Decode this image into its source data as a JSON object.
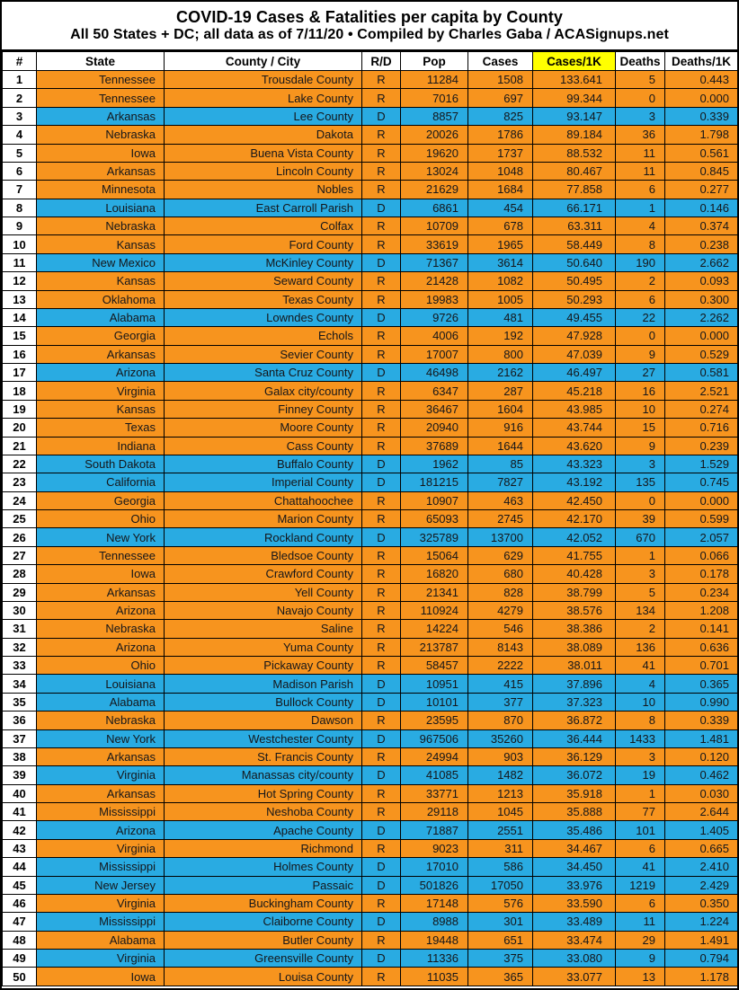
{
  "chart_data": {
    "type": "table",
    "title": "COVID-19 Cases & Fatalities per capita by County",
    "subtitle": "All 50 States + DC; all data as of 7/11/20  • Compiled by Charles Gaba / ACASignups.net",
    "columns": [
      "#",
      "State",
      "County / City",
      "R/D",
      "Pop",
      "Cases",
      "Cases/1K",
      "Deaths",
      "Deaths/1K"
    ],
    "highlighted_column": "Cases/1K",
    "colors": {
      "r_row": "#F7941E",
      "d_row": "#29ABE2",
      "header_highlight": "#FFFF00",
      "border": "#000000"
    },
    "rows": [
      [
        "1",
        "Tennessee",
        "Trousdale County",
        "R",
        "11284",
        "1508",
        "133.641",
        "5",
        "0.443"
      ],
      [
        "2",
        "Tennessee",
        "Lake County",
        "R",
        "7016",
        "697",
        "99.344",
        "0",
        "0.000"
      ],
      [
        "3",
        "Arkansas",
        "Lee County",
        "D",
        "8857",
        "825",
        "93.147",
        "3",
        "0.339"
      ],
      [
        "4",
        "Nebraska",
        "Dakota",
        "R",
        "20026",
        "1786",
        "89.184",
        "36",
        "1.798"
      ],
      [
        "5",
        "Iowa",
        "Buena Vista County",
        "R",
        "19620",
        "1737",
        "88.532",
        "11",
        "0.561"
      ],
      [
        "6",
        "Arkansas",
        "Lincoln County",
        "R",
        "13024",
        "1048",
        "80.467",
        "11",
        "0.845"
      ],
      [
        "7",
        "Minnesota",
        "Nobles",
        "R",
        "21629",
        "1684",
        "77.858",
        "6",
        "0.277"
      ],
      [
        "8",
        "Louisiana",
        "East Carroll Parish",
        "D",
        "6861",
        "454",
        "66.171",
        "1",
        "0.146"
      ],
      [
        "9",
        "Nebraska",
        "Colfax",
        "R",
        "10709",
        "678",
        "63.311",
        "4",
        "0.374"
      ],
      [
        "10",
        "Kansas",
        "Ford County",
        "R",
        "33619",
        "1965",
        "58.449",
        "8",
        "0.238"
      ],
      [
        "11",
        "New Mexico",
        "McKinley County",
        "D",
        "71367",
        "3614",
        "50.640",
        "190",
        "2.662"
      ],
      [
        "12",
        "Kansas",
        "Seward County",
        "R",
        "21428",
        "1082",
        "50.495",
        "2",
        "0.093"
      ],
      [
        "13",
        "Oklahoma",
        "Texas County",
        "R",
        "19983",
        "1005",
        "50.293",
        "6",
        "0.300"
      ],
      [
        "14",
        "Alabama",
        "Lowndes County",
        "D",
        "9726",
        "481",
        "49.455",
        "22",
        "2.262"
      ],
      [
        "15",
        "Georgia",
        "Echols",
        "R",
        "4006",
        "192",
        "47.928",
        "0",
        "0.000"
      ],
      [
        "16",
        "Arkansas",
        "Sevier County",
        "R",
        "17007",
        "800",
        "47.039",
        "9",
        "0.529"
      ],
      [
        "17",
        "Arizona",
        "Santa Cruz County",
        "D",
        "46498",
        "2162",
        "46.497",
        "27",
        "0.581"
      ],
      [
        "18",
        "Virginia",
        "Galax city/county",
        "R",
        "6347",
        "287",
        "45.218",
        "16",
        "2.521"
      ],
      [
        "19",
        "Kansas",
        "Finney County",
        "R",
        "36467",
        "1604",
        "43.985",
        "10",
        "0.274"
      ],
      [
        "20",
        "Texas",
        "Moore County",
        "R",
        "20940",
        "916",
        "43.744",
        "15",
        "0.716"
      ],
      [
        "21",
        "Indiana",
        "Cass County",
        "R",
        "37689",
        "1644",
        "43.620",
        "9",
        "0.239"
      ],
      [
        "22",
        "South Dakota",
        "Buffalo County",
        "D",
        "1962",
        "85",
        "43.323",
        "3",
        "1.529"
      ],
      [
        "23",
        "California",
        "Imperial County",
        "D",
        "181215",
        "7827",
        "43.192",
        "135",
        "0.745"
      ],
      [
        "24",
        "Georgia",
        "Chattahoochee",
        "R",
        "10907",
        "463",
        "42.450",
        "0",
        "0.000"
      ],
      [
        "25",
        "Ohio",
        "Marion County",
        "R",
        "65093",
        "2745",
        "42.170",
        "39",
        "0.599"
      ],
      [
        "26",
        "New York",
        "Rockland County",
        "D",
        "325789",
        "13700",
        "42.052",
        "670",
        "2.057"
      ],
      [
        "27",
        "Tennessee",
        "Bledsoe County",
        "R",
        "15064",
        "629",
        "41.755",
        "1",
        "0.066"
      ],
      [
        "28",
        "Iowa",
        "Crawford County",
        "R",
        "16820",
        "680",
        "40.428",
        "3",
        "0.178"
      ],
      [
        "29",
        "Arkansas",
        "Yell County",
        "R",
        "21341",
        "828",
        "38.799",
        "5",
        "0.234"
      ],
      [
        "30",
        "Arizona",
        "Navajo County",
        "R",
        "110924",
        "4279",
        "38.576",
        "134",
        "1.208"
      ],
      [
        "31",
        "Nebraska",
        "Saline",
        "R",
        "14224",
        "546",
        "38.386",
        "2",
        "0.141"
      ],
      [
        "32",
        "Arizona",
        "Yuma County",
        "R",
        "213787",
        "8143",
        "38.089",
        "136",
        "0.636"
      ],
      [
        "33",
        "Ohio",
        "Pickaway County",
        "R",
        "58457",
        "2222",
        "38.011",
        "41",
        "0.701"
      ],
      [
        "34",
        "Louisiana",
        "Madison Parish",
        "D",
        "10951",
        "415",
        "37.896",
        "4",
        "0.365"
      ],
      [
        "35",
        "Alabama",
        "Bullock County",
        "D",
        "10101",
        "377",
        "37.323",
        "10",
        "0.990"
      ],
      [
        "36",
        "Nebraska",
        "Dawson",
        "R",
        "23595",
        "870",
        "36.872",
        "8",
        "0.339"
      ],
      [
        "37",
        "New York",
        "Westchester County",
        "D",
        "967506",
        "35260",
        "36.444",
        "1433",
        "1.481"
      ],
      [
        "38",
        "Arkansas",
        "St. Francis County",
        "R",
        "24994",
        "903",
        "36.129",
        "3",
        "0.120"
      ],
      [
        "39",
        "Virginia",
        "Manassas city/county",
        "D",
        "41085",
        "1482",
        "36.072",
        "19",
        "0.462"
      ],
      [
        "40",
        "Arkansas",
        "Hot Spring County",
        "R",
        "33771",
        "1213",
        "35.918",
        "1",
        "0.030"
      ],
      [
        "41",
        "Mississippi",
        "Neshoba County",
        "R",
        "29118",
        "1045",
        "35.888",
        "77",
        "2.644"
      ],
      [
        "42",
        "Arizona",
        "Apache County",
        "D",
        "71887",
        "2551",
        "35.486",
        "101",
        "1.405"
      ],
      [
        "43",
        "Virginia",
        "Richmond",
        "R",
        "9023",
        "311",
        "34.467",
        "6",
        "0.665"
      ],
      [
        "44",
        "Mississippi",
        "Holmes County",
        "D",
        "17010",
        "586",
        "34.450",
        "41",
        "2.410"
      ],
      [
        "45",
        "New Jersey",
        "Passaic",
        "D",
        "501826",
        "17050",
        "33.976",
        "1219",
        "2.429"
      ],
      [
        "46",
        "Virginia",
        "Buckingham County",
        "R",
        "17148",
        "576",
        "33.590",
        "6",
        "0.350"
      ],
      [
        "47",
        "Mississippi",
        "Claiborne County",
        "D",
        "8988",
        "301",
        "33.489",
        "11",
        "1.224"
      ],
      [
        "48",
        "Alabama",
        "Butler County",
        "R",
        "19448",
        "651",
        "33.474",
        "29",
        "1.491"
      ],
      [
        "49",
        "Virginia",
        "Greensville County",
        "D",
        "11336",
        "375",
        "33.080",
        "9",
        "0.794"
      ],
      [
        "50",
        "Iowa",
        "Louisa County",
        "R",
        "11035",
        "365",
        "33.077",
        "13",
        "1.178"
      ]
    ]
  }
}
